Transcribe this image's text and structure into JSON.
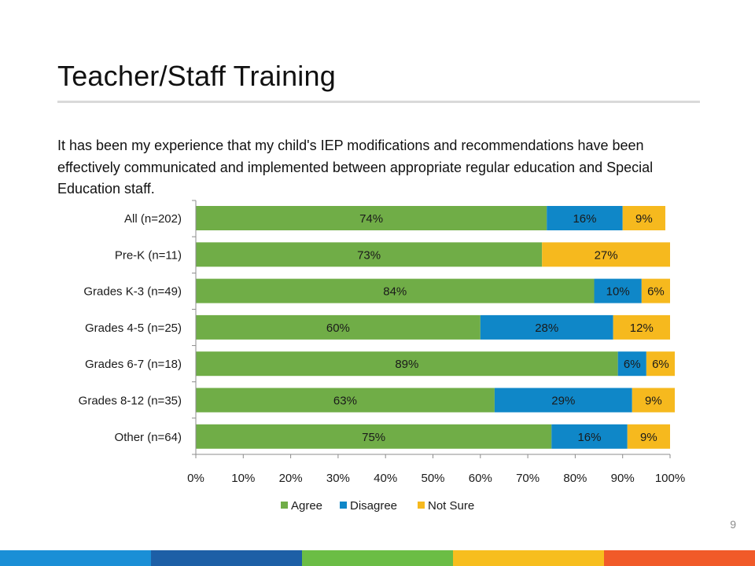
{
  "slide": {
    "title": "Teacher/Staff Training",
    "question": "It has been my experience that my child's IEP modifications and recommendations have been effectively communicated and implemented between appropriate regular education and Special Education staff.",
    "page_number": "9"
  },
  "footer_colors": [
    "#1a8fd6",
    "#1d5fa6",
    "#6bbd45",
    "#f7be1e",
    "#f15a29"
  ],
  "chart_data": {
    "type": "bar",
    "orientation": "horizontal",
    "stacked": "percent",
    "categories": [
      "All (n=202)",
      "Pre-K (n=11)",
      "Grades K-3 (n=49)",
      "Grades 4-5 (n=25)",
      "Grades 6-7 (n=18)",
      "Grades 8-12 (n=35)",
      "Other (n=64)"
    ],
    "series": [
      {
        "name": "Agree",
        "color": "#70ad47",
        "values": [
          74,
          73,
          84,
          60,
          89,
          63,
          75
        ],
        "labels": [
          "74%",
          "73%",
          "84%",
          "60%",
          "89%",
          "63%",
          "75%"
        ]
      },
      {
        "name": "Disagree",
        "color": "#0f87c8",
        "values": [
          16,
          0,
          10,
          28,
          6,
          29,
          16
        ],
        "labels": [
          "16%",
          "",
          "10%",
          "28%",
          "6%",
          "29%",
          "16%"
        ]
      },
      {
        "name": "Not Sure",
        "color": "#f6b91e",
        "values": [
          9,
          27,
          6,
          12,
          6,
          9,
          9
        ],
        "labels": [
          "9%",
          "27%",
          "6%",
          "12%",
          "6%",
          "9%",
          "9%"
        ]
      }
    ],
    "xlim": [
      0,
      100
    ],
    "x_ticks": [
      "0%",
      "10%",
      "20%",
      "30%",
      "40%",
      "50%",
      "60%",
      "70%",
      "80%",
      "90%",
      "100%"
    ],
    "grid": false,
    "legend": "bottom"
  }
}
